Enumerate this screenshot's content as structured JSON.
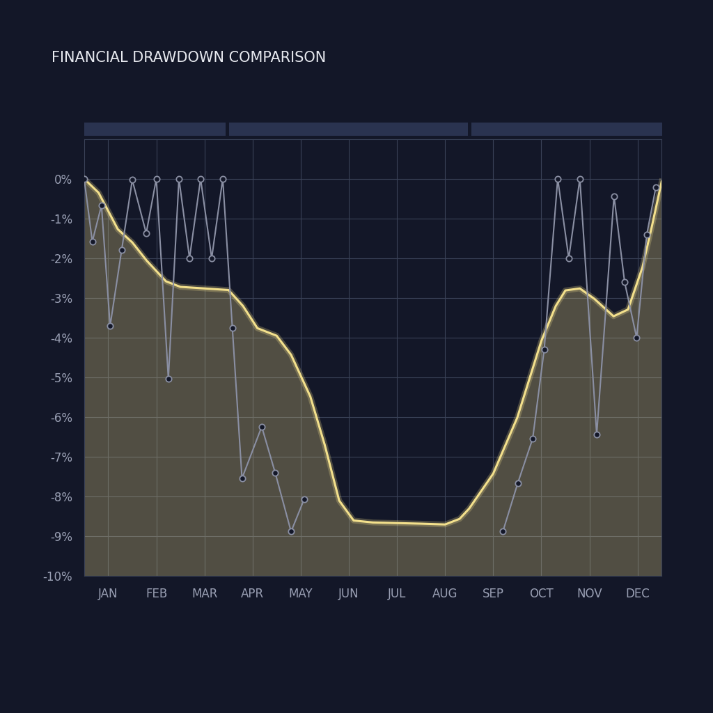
{
  "chart_data": {
    "type": "line",
    "title": "FINANCIAL DRAWDOWN COMPARISON",
    "xlim": [
      0,
      12
    ],
    "xticks": [
      {
        "value": 0.5,
        "label": "JAN"
      },
      {
        "value": 1.5,
        "label": "FEB"
      },
      {
        "value": 2.5,
        "label": "MAR"
      },
      {
        "value": 3.5,
        "label": "APR"
      },
      {
        "value": 4.5,
        "label": "MAY"
      },
      {
        "value": 5.5,
        "label": "JUN"
      },
      {
        "value": 6.5,
        "label": "JUL"
      },
      {
        "value": 7.5,
        "label": "AUG"
      },
      {
        "value": 8.5,
        "label": "SEP"
      },
      {
        "value": 9.5,
        "label": "OCT"
      },
      {
        "value": 10.5,
        "label": "NOV"
      },
      {
        "value": 11.5,
        "label": "DEC"
      }
    ],
    "ylim": [
      -10,
      1
    ],
    "yticks": [
      {
        "value": 0,
        "label": "0%"
      },
      {
        "value": -1,
        "label": "-1%"
      },
      {
        "value": -2,
        "label": "-2%"
      },
      {
        "value": -3,
        "label": "-3%"
      },
      {
        "value": -4,
        "label": "-4%"
      },
      {
        "value": -5,
        "label": "-5%"
      },
      {
        "value": -6,
        "label": "-6%"
      },
      {
        "value": -7,
        "label": "-7%"
      },
      {
        "value": -8,
        "label": "-8%"
      },
      {
        "value": -9,
        "label": "-9%"
      },
      {
        "value": -10,
        "label": "-10%"
      }
    ],
    "grid": true,
    "series": [
      {
        "type": "area",
        "color": "#f3e08c",
        "x": [
          0,
          0.3,
          0.7,
          1.0,
          1.3,
          1.7,
          2.0,
          2.5,
          3.0,
          3.3,
          3.6,
          4.0,
          4.3,
          4.7,
          5.0,
          5.3,
          5.6,
          6.0,
          7.0,
          7.5,
          7.8,
          8.0,
          8.5,
          9.0,
          9.5,
          9.8,
          10.0,
          10.3,
          10.6,
          11.0,
          11.3,
          11.6,
          11.8,
          12.0
        ],
        "values": [
          0,
          -0.35,
          -1.27,
          -1.6,
          -2.06,
          -2.58,
          -2.72,
          -2.76,
          -2.8,
          -3.2,
          -3.76,
          -3.95,
          -4.43,
          -5.48,
          -6.7,
          -8.1,
          -8.6,
          -8.65,
          -8.68,
          -8.7,
          -8.56,
          -8.3,
          -7.42,
          -6.01,
          -4.08,
          -3.2,
          -2.81,
          -2.76,
          -3.02,
          -3.46,
          -3.29,
          -2.23,
          -1.18,
          -0.07
        ]
      },
      {
        "type": "line",
        "color": "#8a8fa3",
        "marker": "o",
        "line_style": "solid",
        "x": [
          0,
          0.17,
          0.36,
          0.54,
          0.78,
          1.0,
          1.29,
          1.5,
          1.75,
          1.97,
          2.19,
          2.42,
          2.65,
          2.88,
          3.08,
          3.28,
          3.69,
          3.97,
          4.3,
          4.57,
          6.6,
          8.7,
          9.01,
          9.32,
          9.56,
          9.84,
          10.07,
          10.3,
          10.65,
          11.01,
          11.23,
          11.48,
          11.69,
          11.88
        ],
        "values": [
          0,
          -1.58,
          -0.67,
          -3.7,
          -1.79,
          -0.03,
          -1.37,
          0,
          -5.03,
          0,
          -2.0,
          0,
          -2.0,
          0,
          -3.76,
          -7.54,
          -6.24,
          -7.4,
          -8.88,
          -8.07,
          null,
          -8.88,
          -7.66,
          -6.54,
          -4.29,
          0,
          -2.0,
          0,
          -6.43,
          -0.44,
          -2.6,
          -4.0,
          -1.41,
          -0.21
        ]
      }
    ]
  }
}
